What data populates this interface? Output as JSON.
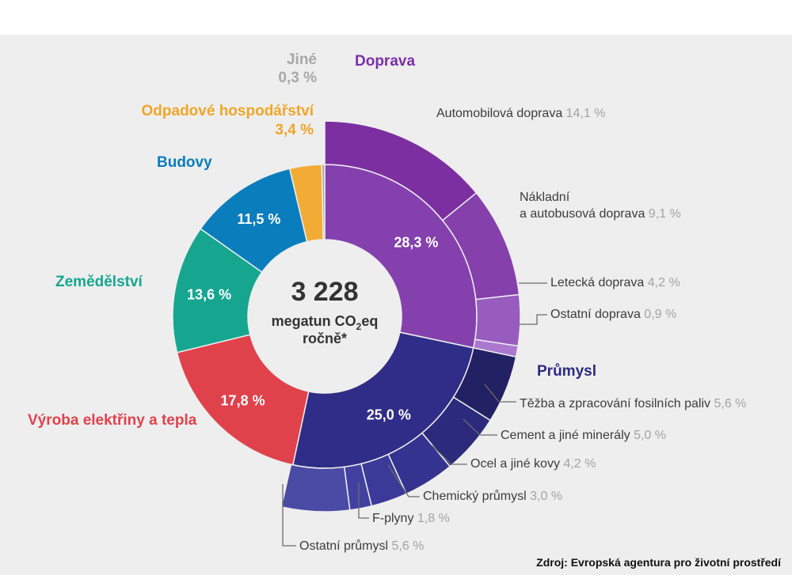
{
  "chart_data": {
    "type": "pie",
    "center": {
      "total": "3 228",
      "unit_main": "megatun CO",
      "unit_sub": "2",
      "unit_tail": "eq",
      "period": "ročně*"
    },
    "sectors": [
      {
        "name": "Doprava",
        "value": 28.3,
        "label": "28,3 %",
        "color": "#8441ad",
        "title_color": "#7b2fa9",
        "sub": [
          {
            "name": "Automobilová doprava",
            "value": 14.1,
            "pct": "14,1 %",
            "color": "#7b2fa0"
          },
          {
            "name": "Nákladní a autobusová doprava",
            "line1": "Nákladní",
            "line2": "a autobusová doprava",
            "value": 9.1,
            "pct": "9,1 %",
            "color": "#8540ac"
          },
          {
            "name": "Letecká doprava",
            "value": 4.2,
            "pct": "4,2 %",
            "color": "#985bbe"
          },
          {
            "name": "Ostatní doprava",
            "value": 0.9,
            "pct": "0,9 %",
            "color": "#ab78cd"
          }
        ]
      },
      {
        "name": "Průmysl",
        "value": 25.0,
        "label": "25,0 %",
        "color": "#2f2d87",
        "title_color": "#2b2a82",
        "sub": [
          {
            "name": "Těžba a zpracování fosilních paliv",
            "value": 5.6,
            "pct": "5,6 %",
            "color": "#222163"
          },
          {
            "name": "Cement a jiné minerály",
            "value": 5.0,
            "pct": "5,0 %",
            "color": "#2b2a7c"
          },
          {
            "name": "Ocel a jiné kovy",
            "value": 4.2,
            "pct": "4,2 %",
            "color": "#34338f"
          },
          {
            "name": "Chemický průmysl",
            "value": 3.0,
            "pct": "3,0 %",
            "color": "#3b3a98"
          },
          {
            "name": "F-plyny",
            "value": 1.8,
            "pct": "1,8 %",
            "color": "#4240a0"
          },
          {
            "name": "Ostatní průmysl",
            "value": 5.6,
            "pct": "5,6 %",
            "color": "#4a4ba5"
          }
        ]
      },
      {
        "name": "Výroba elektřiny a tepla",
        "value": 17.8,
        "label": "17,8 %",
        "color": "#e0424b",
        "title_color": "#e0424b",
        "sub": []
      },
      {
        "name": "Zemědělství",
        "value": 13.6,
        "label": "13,6 %",
        "color": "#16a690",
        "title_color": "#16a690",
        "sub": []
      },
      {
        "name": "Budovy",
        "value": 11.5,
        "label": "11,5 %",
        "color": "#0a7dbd",
        "title_color": "#0a7dbd",
        "sub": []
      },
      {
        "name": "Odpadové hospodářství",
        "value": 3.4,
        "label": "3,4 %",
        "color": "#f2ac36",
        "title_color": "#f0a528",
        "sub": []
      },
      {
        "name": "Jiné",
        "value": 0.3,
        "label": "0,3 %",
        "color": "#a8a8a8",
        "title_color": "#a8a8a8",
        "sub": []
      }
    ],
    "pct_color": "#a3a3a3",
    "source": "Zdroj: Evropská agentura pro životní prostředí"
  }
}
